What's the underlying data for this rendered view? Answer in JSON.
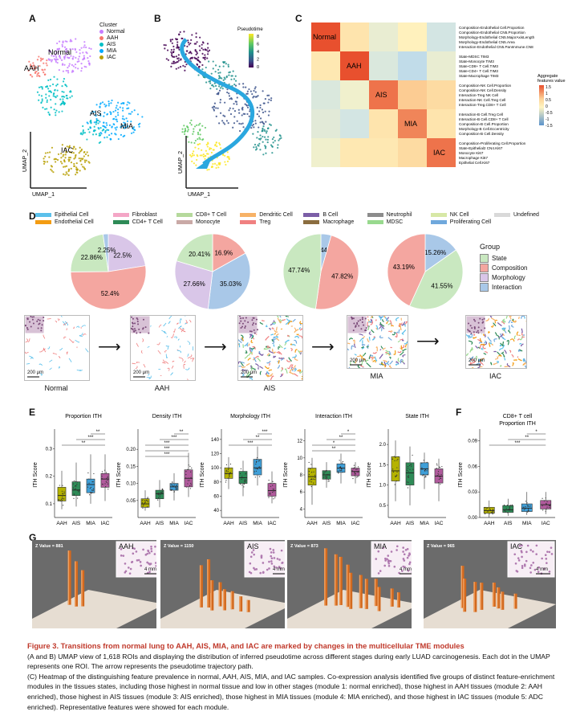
{
  "panels": {
    "a": "A",
    "b": "B",
    "c": "C",
    "d": "D",
    "e": "E",
    "f": "F",
    "g": "G"
  },
  "panel_a": {
    "cluster_title": "Cluster",
    "clusters": [
      {
        "name": "Normal",
        "color": "#c77cff"
      },
      {
        "name": "AAH",
        "color": "#f8766d"
      },
      {
        "name": "AIS",
        "color": "#00bfc4"
      },
      {
        "name": "MIA",
        "color": "#00a9ff"
      },
      {
        "name": "IAC",
        "color": "#b79f00"
      }
    ],
    "labels": {
      "normal": "Normal",
      "aah": "AAH",
      "ais": "AIS",
      "mia": "MIA",
      "iac": "IAC"
    },
    "xlabel": "UMAP_1",
    "ylabel": "UMAP_2"
  },
  "panel_b": {
    "legend_title": "Pseudotime",
    "ticks": [
      "8",
      "6",
      "4",
      "2",
      "0"
    ],
    "xlabel": "UMAP_1",
    "ylabel": "UMAP_2"
  },
  "panel_c": {
    "groups": [
      "Normal",
      "AAH",
      "AIS",
      "MIA",
      "IAC"
    ],
    "legend_title": "Aggregate\nfeatures value",
    "legend_ticks": [
      "1.5",
      "1",
      "0.5",
      "0",
      "-0.5",
      "-1",
      "-1.5"
    ],
    "features": [
      [
        "Composition-Endothelial Cell.Proportion",
        "Composition-Endothelial CN5.Proportion",
        "Morphology-Endothelial CN5.MajorAxisLength",
        "Morphology-Endothelial CN5.Area",
        "Interaction-Endothelial CN5.PanImmune.CN8"
      ],
      [
        "State-MDSC TIM3",
        "State-Monocyte TIM3",
        "State-CD8+ T Cell.TIM3",
        "State-CD4+ T Cell.TIM3",
        "State-Macrophage TIM3"
      ],
      [
        "Composition-NK Cell.Proportion",
        "Composition-NK Cell.Density",
        "Interaction-Treg NK Cell",
        "Interaction-NK Cell.Treg Cell",
        "Interaction-Treg.CD8+ T Cell"
      ],
      [
        "Interaction-B Cell.Treg Cell",
        "Interaction-B Cell.CD8+ T Cell",
        "Composition-B Cell.Proportion",
        "Morphology-B Cell.Eccentricity",
        "Composition-B Cell.Density"
      ],
      [
        "Composition-Proliferating Cell.Proportion",
        "State-Epithelial2 CN4.Ki67",
        "Monocyte Ki67",
        "Macrophage Ki67",
        "Epithelial Cell.Ki67"
      ]
    ],
    "matrix": [
      [
        1.5,
        0.4,
        -0.3,
        0.1,
        -0.6
      ],
      [
        0.3,
        1.5,
        -0.5,
        -0.8,
        -0.3
      ],
      [
        -0.5,
        -0.2,
        1.3,
        0.8,
        0.6
      ],
      [
        -0.4,
        -0.6,
        0.4,
        1.2,
        0.4
      ],
      [
        -0.2,
        0.3,
        0.3,
        0.6,
        1.3
      ]
    ]
  },
  "panel_d": {
    "cell_types": [
      {
        "name": "Epithelial Cell",
        "color": "#5bc0eb"
      },
      {
        "name": "Fibroblast",
        "color": "#f4a6c6"
      },
      {
        "name": "CD8+ T Cell",
        "color": "#b5d99c"
      },
      {
        "name": "Dendritic Cell",
        "color": "#f7b267"
      },
      {
        "name": "B Cell",
        "color": "#7b5ea7"
      },
      {
        "name": "Neutrophil",
        "color": "#8c8c8c"
      },
      {
        "name": "NK Cell",
        "color": "#d7e8a6"
      },
      {
        "name": "Undefined",
        "color": "#d9d9d9"
      },
      {
        "name": "Endothelial Cell",
        "color": "#f39c12"
      },
      {
        "name": "CD4+ T Cell",
        "color": "#2e8b57"
      },
      {
        "name": "Monocyte",
        "color": "#c9a9a6"
      },
      {
        "name": "Treg",
        "color": "#f08080"
      },
      {
        "name": "Macrophage",
        "color": "#8b6d3f"
      },
      {
        "name": "MDSC",
        "color": "#98d98e"
      },
      {
        "name": "Proliferating Cell",
        "color": "#6fa8dc"
      }
    ],
    "group_title": "Group",
    "groups": [
      {
        "name": "State",
        "color": "#c9e8c0"
      },
      {
        "name": "Composition",
        "color": "#f4a6a0"
      },
      {
        "name": "Morphology",
        "color": "#d9c6e8"
      },
      {
        "name": "Interaction",
        "color": "#a9c8e8"
      }
    ],
    "pies": [
      {
        "tissue": "Normal",
        "slices": [
          {
            "g": "Morphology",
            "v": 22.5,
            "label": "22.5%"
          },
          {
            "g": "Composition",
            "v": 52.4,
            "label": "52.4%"
          },
          {
            "g": "State",
            "v": 22.86,
            "label": "22.86%"
          },
          {
            "g": "Interaction",
            "v": 2.25,
            "label": "2.25%"
          }
        ]
      },
      {
        "tissue": "AAH",
        "slices": [
          {
            "g": "Composition",
            "v": 16.9,
            "label": "16.9%"
          },
          {
            "g": "Interaction",
            "v": 35.03,
            "label": "35.03%"
          },
          {
            "g": "Morphology",
            "v": 27.66,
            "label": "27.66%"
          },
          {
            "g": "State",
            "v": 20.41,
            "label": "20.41%"
          }
        ]
      },
      {
        "tissue": "AIS",
        "slices": [
          {
            "g": "Interaction",
            "v": 4.44,
            "label": "4.44%"
          },
          {
            "g": "Composition",
            "v": 47.82,
            "label": "47.82%"
          },
          {
            "g": "State",
            "v": 47.74,
            "label": "47.74%"
          }
        ]
      },
      {
        "tissue": "IAC",
        "slices": [
          {
            "g": "Interaction",
            "v": 15.26,
            "label": "15.26%"
          },
          {
            "g": "State",
            "v": 41.55,
            "label": "41.55%"
          },
          {
            "g": "Composition",
            "v": 43.19,
            "label": "43.19%"
          }
        ]
      }
    ],
    "tissues": [
      "Normal",
      "AAH",
      "AIS",
      "MIA",
      "IAC"
    ],
    "scale": "200 μm"
  },
  "panel_e": {
    "ylabel": "ITH Score",
    "categories": [
      "AAH",
      "AIS",
      "MIA",
      "IAC"
    ],
    "colors": [
      "#b5b300",
      "#2e8b57",
      "#3f9fd8",
      "#b05a9c"
    ],
    "sig": "***",
    "charts": [
      {
        "title": "Proportion ITH",
        "yticks": [
          "0.1",
          "0.2",
          "0.3"
        ],
        "ymin": 0.05,
        "ymax": 0.36,
        "boxes": [
          [
            0.08,
            0.11,
            0.13,
            0.16,
            0.22
          ],
          [
            0.09,
            0.13,
            0.15,
            0.18,
            0.25
          ],
          [
            0.1,
            0.14,
            0.17,
            0.19,
            0.28
          ],
          [
            0.11,
            0.16,
            0.19,
            0.21,
            0.28
          ]
        ],
        "sigs": [
          "**",
          "***",
          "**"
        ]
      },
      {
        "title": "Density ITH",
        "yticks": [
          "0.05",
          "0.10",
          "0.15",
          "0.20"
        ],
        "ymin": 0.0,
        "ymax": 0.25,
        "boxes": [
          [
            0.02,
            0.03,
            0.04,
            0.055,
            0.08
          ],
          [
            0.03,
            0.055,
            0.07,
            0.08,
            0.11
          ],
          [
            0.05,
            0.08,
            0.09,
            0.1,
            0.13
          ],
          [
            0.06,
            0.09,
            0.115,
            0.14,
            0.19
          ]
        ],
        "sigs": [
          "**",
          "***",
          "***",
          "***",
          "***"
        ]
      },
      {
        "title": "Morphology ITH",
        "yticks": [
          "40",
          "60",
          "80",
          "100",
          "120",
          "140"
        ],
        "ymin": 30,
        "ymax": 150,
        "boxes": [
          [
            70,
            85,
            92,
            100,
            115
          ],
          [
            60,
            78,
            86,
            95,
            110
          ],
          [
            75,
            90,
            100,
            112,
            130
          ],
          [
            50,
            60,
            68,
            78,
            95
          ]
        ],
        "sigs": [
          "***",
          "**",
          "***"
        ]
      },
      {
        "title": "Interaction ITH",
        "yticks": [
          "4",
          "6",
          "8",
          "10",
          "12"
        ],
        "ymin": 3,
        "ymax": 13,
        "boxes": [
          [
            4.5,
            6.8,
            7.8,
            8.8,
            10
          ],
          [
            6.5,
            7.5,
            8.0,
            8.5,
            9.5
          ],
          [
            7,
            8.3,
            8.8,
            9.3,
            10.5
          ],
          [
            7,
            7.9,
            8.4,
            8.8,
            9.5
          ]
        ],
        "sigs": [
          "*",
          "**",
          "*",
          "**"
        ]
      },
      {
        "title": "State ITH",
        "yticks": [
          "0.5",
          "1.0",
          "1.5",
          "2.0"
        ],
        "ymin": 0.2,
        "ymax": 2.3,
        "boxes": [
          [
            0.6,
            1.1,
            1.35,
            1.7,
            2.1
          ],
          [
            0.5,
            1.0,
            1.3,
            1.55,
            1.95
          ],
          [
            0.9,
            1.25,
            1.4,
            1.55,
            1.8
          ],
          [
            0.6,
            1.05,
            1.22,
            1.4,
            1.65
          ]
        ],
        "sigs": []
      }
    ]
  },
  "panel_f": {
    "title": "CD8+ T cell\nProportion ITH",
    "ylabel": "ITH Score",
    "categories": [
      "AAH",
      "AIS",
      "MIA",
      "IAC"
    ],
    "yticks": [
      "0.00",
      "0.03",
      "0.06",
      "0.09"
    ],
    "ymin": 0,
    "ymax": 0.1,
    "boxes": [
      [
        0.0,
        0.005,
        0.008,
        0.012,
        0.02
      ],
      [
        0.002,
        0.006,
        0.009,
        0.014,
        0.022
      ],
      [
        0.003,
        0.007,
        0.011,
        0.016,
        0.03
      ],
      [
        0.004,
        0.01,
        0.015,
        0.02,
        0.03
      ]
    ],
    "sigs": [
      "*",
      "**",
      "***"
    ]
  },
  "panel_g": {
    "cells": [
      {
        "z": "Z Value = 881",
        "name": "AAH",
        "scale": "4 mm",
        "bars": [
          0.9,
          0.75,
          0.6
        ]
      },
      {
        "z": "Z Value = 1150",
        "name": "AIS",
        "scale": "4 mm",
        "bars": [
          0.7,
          0.8,
          0.5,
          0.4,
          0.35,
          0.3,
          0.25,
          0.2
        ]
      },
      {
        "z": "Z Value = 873",
        "name": "MIA",
        "scale": "4 mm",
        "bars": [
          0.95,
          0.85,
          0.8,
          0.7,
          0.6,
          0.55,
          0.5,
          0.45,
          0.4,
          0.3,
          0.25
        ]
      },
      {
        "z": "Z Value = 965",
        "name": "IAC",
        "scale": "4 mm",
        "bars": [
          0.7,
          0.55,
          0.5,
          0.45,
          0.4,
          0.35,
          0.3,
          0.25
        ]
      }
    ]
  },
  "caption": {
    "title": "Figure 3.  Transitions from normal lung to AAH, AIS, MIA, and IAC are marked by changes in the multicellular TME modules",
    "p1": "(A and B) UMAP view of 1,618 ROIs and displaying the distribution of inferred pseudotime across different stages during early LUAD carcinogenesis. Each dot in the UMAP represents one ROI. The arrow represents the pseudotime trajectory path.",
    "p2": "(C) Heatmap of the distinguishing feature prevalence in normal, AAH, AIS, MIA, and IAC samples. Co-expression analysis identified five groups of distinct feature-enrichment modules in the tissues states, including those highest in normal tissue and low in other stages (module 1: normal enriched), those highest in AAH tissues (module 2: AAH enriched), those highest in AIS tissues (module 3: AIS enriched), those highest in MIA tissues (module 4: MIA enriched), and those highest in IAC tissues (module 5: ADC enriched). Representative features were showed for each module."
  }
}
